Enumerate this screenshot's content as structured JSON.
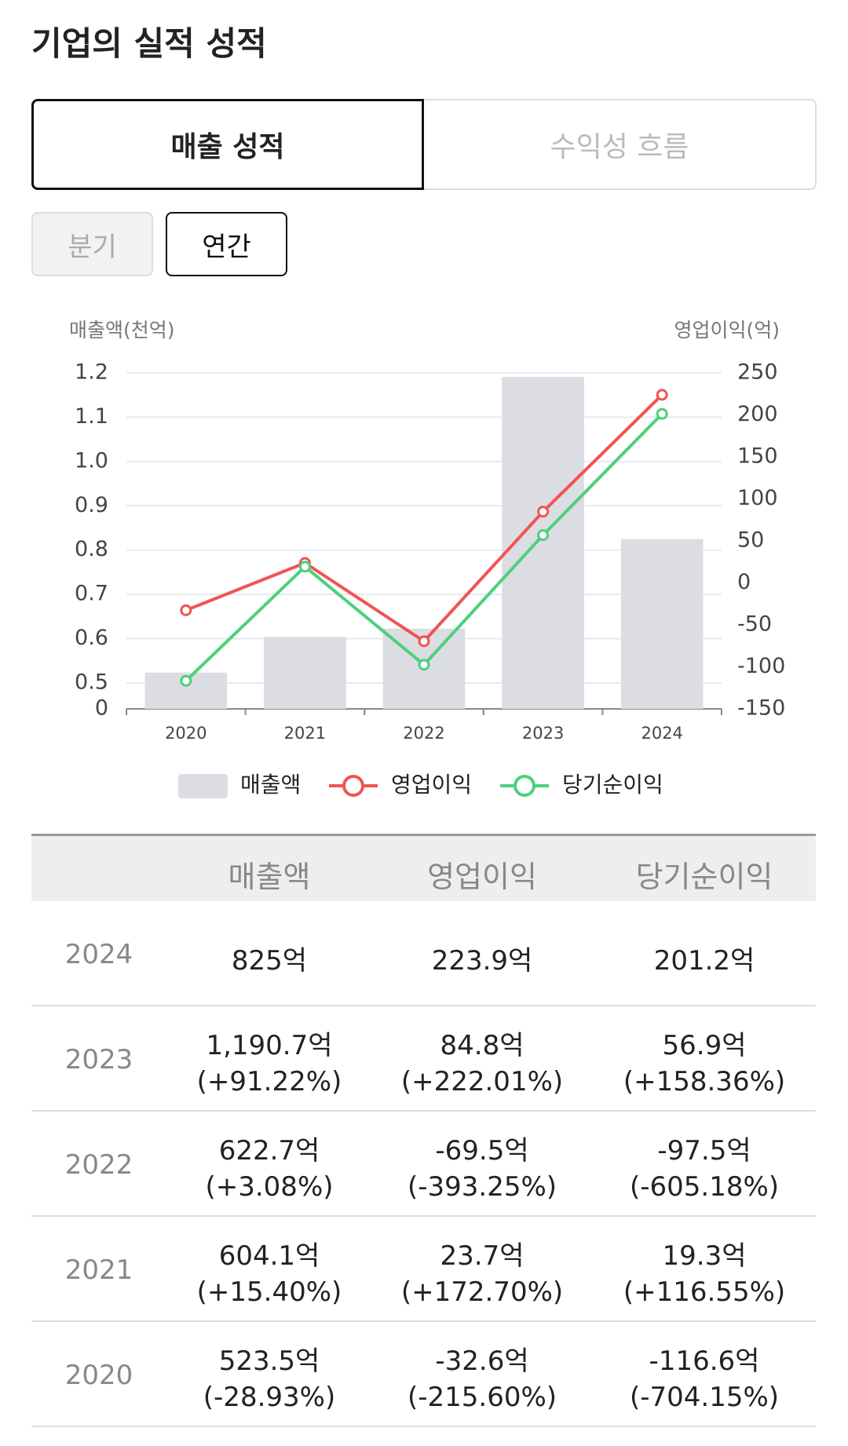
{
  "header": {
    "title": "기업의 실적 성적"
  },
  "tabs": [
    "매출 성적",
    "수익성 흐름"
  ],
  "periods": [
    "분기",
    "연간"
  ],
  "chart_data": {
    "type": "bar_line",
    "y_label": "매출액(천억)",
    "y2_label": "영업이익(억)",
    "categories": [
      "2020",
      "2021",
      "2022",
      "2023",
      "2024"
    ],
    "series": [
      {
        "name": "매출액",
        "type": "bar",
        "color": "#dcdde2",
        "values": [
          0.5235,
          0.6041,
          0.6227,
          1.1907,
          0.825
        ]
      },
      {
        "name": "영업이익",
        "type": "line",
        "axis": "y2",
        "color": "#f05454",
        "values": [
          -32.6,
          23.7,
          -69.5,
          84.8,
          223.9
        ]
      },
      {
        "name": "당기순이익",
        "type": "line",
        "axis": "y2",
        "color": "#4cd07d",
        "values": [
          -116.6,
          19.3,
          -97.5,
          56.9,
          201.2
        ]
      }
    ],
    "ylim": [
      0,
      1.2
    ],
    "yticks": [
      0,
      0.5,
      0.6,
      0.7,
      0.8,
      0.9,
      {
        "value": 1,
        "label": "1.0"
      },
      1.1,
      1.2
    ],
    "y2lim": [
      -150,
      250
    ],
    "y2ticks": [
      -150,
      -100,
      -50,
      0,
      50,
      100,
      150,
      200,
      250
    ],
    "grid": true,
    "legend": "bottom"
  },
  "table": {
    "columns": [
      "매출액",
      "영업이익",
      "당기순이익"
    ],
    "rows": [
      {
        "label": "2024",
        "cells": [
          {
            "value": "825억"
          },
          {
            "value": "223.9억"
          },
          {
            "value": "201.2억"
          }
        ]
      },
      {
        "label": "2023",
        "cells": [
          {
            "value": "1,190.7억",
            "change": "(+91.22%)"
          },
          {
            "value": "84.8억",
            "change": "(+222.01%)"
          },
          {
            "value": "56.9억",
            "change": "(+158.36%)"
          }
        ]
      },
      {
        "label": "2022",
        "cells": [
          {
            "value": "622.7억",
            "change": "(+3.08%)"
          },
          {
            "value": "-69.5억",
            "change": "(-393.25%)"
          },
          {
            "value": "-97.5억",
            "change": "(-605.18%)"
          }
        ]
      },
      {
        "label": "2021",
        "cells": [
          {
            "value": "604.1억",
            "change": "(+15.40%)"
          },
          {
            "value": "23.7억",
            "change": "(+172.70%)"
          },
          {
            "value": "19.3억",
            "change": "(+116.55%)"
          }
        ]
      },
      {
        "label": "2020",
        "cells": [
          {
            "value": "523.5억",
            "change": "(-28.93%)"
          },
          {
            "value": "-32.6억",
            "change": "(-215.60%)"
          },
          {
            "value": "-116.6억",
            "change": "(-704.15%)"
          }
        ]
      }
    ]
  }
}
